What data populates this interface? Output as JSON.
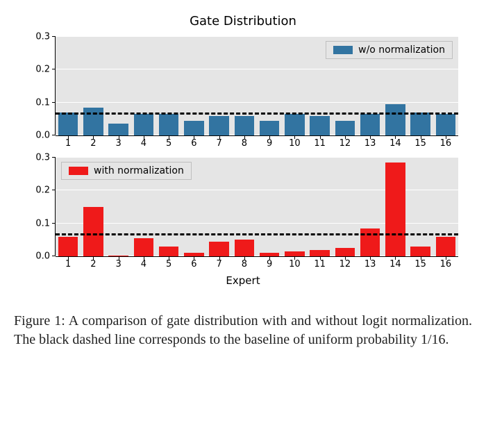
{
  "title": "Gate Distribution",
  "xlabel": "Expert",
  "categories": [
    1,
    2,
    3,
    4,
    5,
    6,
    7,
    8,
    9,
    10,
    11,
    12,
    13,
    14,
    15,
    16
  ],
  "ylim": [
    0.0,
    0.3
  ],
  "yticks": [
    0.0,
    0.1,
    0.2,
    0.3
  ],
  "ytick_labels": [
    "0.0",
    "0.1",
    "0.2",
    "0.3"
  ],
  "baseline": 0.0625,
  "bar_width": 0.78,
  "plot_background": "#e5e5e5",
  "grid_color": "#ffffff",
  "baseline_color": "#000000",
  "series": {
    "top": {
      "label": "w/o normalization",
      "color": "#3274a1",
      "legend_pos": "top-right",
      "values": [
        0.07,
        0.085,
        0.035,
        0.065,
        0.065,
        0.045,
        0.06,
        0.06,
        0.045,
        0.065,
        0.06,
        0.045,
        0.065,
        0.095,
        0.07,
        0.065
      ]
    },
    "bottom": {
      "label": "with normalization",
      "color": "#e1812c",
      "legend_pos": "top-left",
      "values": [
        0.06,
        0.15,
        0.003,
        0.055,
        0.03,
        0.01,
        0.045,
        0.05,
        0.01,
        0.015,
        0.02,
        0.025,
        0.085,
        0.285,
        0.03,
        0.06
      ]
    }
  },
  "caption": "Figure 1: A comparison of gate distribution with and without logit normalization. The black dashed line corresponds to the baseline of uniform probability 1/16."
}
